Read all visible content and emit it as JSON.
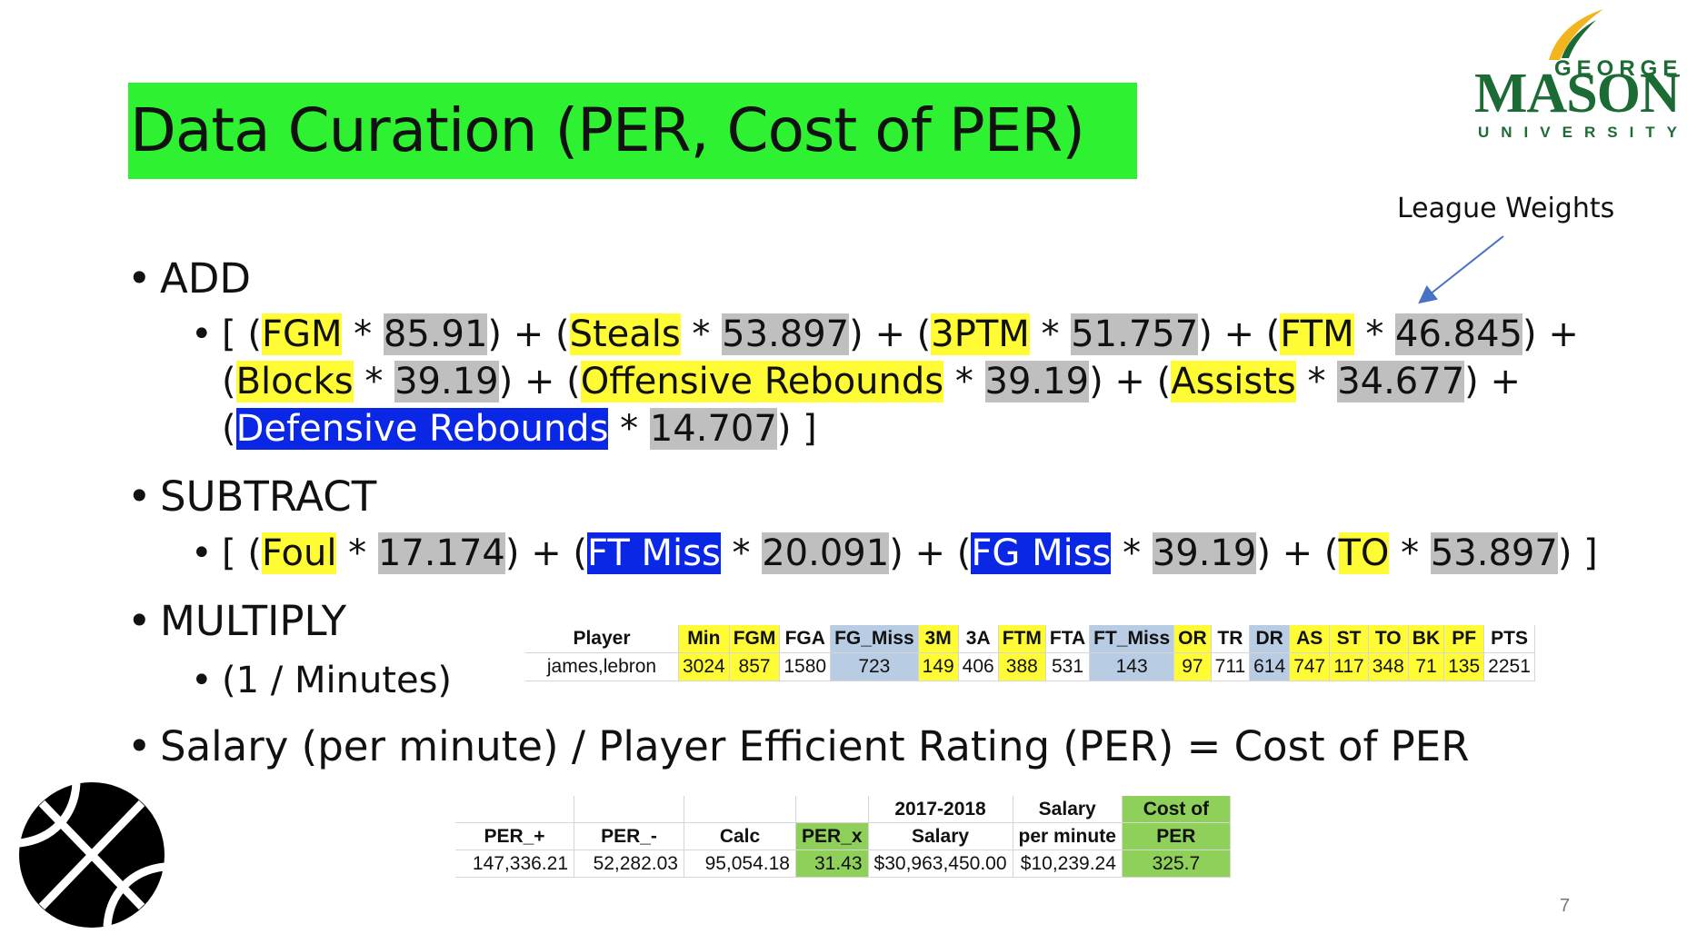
{
  "title": "Data Curation (PER, Cost of PER)",
  "logo": {
    "line1": "GEORGE",
    "line2": "MASON",
    "line3": "UNIVERSITY"
  },
  "annotation": "League Weights",
  "add": {
    "heading": "ADD",
    "parts": {
      "open1": "[ (",
      "t_fgm": "FGM",
      "op1": " * ",
      "w_fgm": "85.91",
      "c1": ") + (",
      "t_steals": "Steals",
      "op2": " * ",
      "w_steals": "53.897",
      "c2": ") + (",
      "t_3ptm": "3PTM",
      "op3": " * ",
      "w_3ptm": "51.757",
      "c3": ") + (",
      "t_ftm": "FTM",
      "op4": " * ",
      "w_ftm": "46.845",
      "c4": ") +",
      "open2": "(",
      "t_blocks": "Blocks",
      "op5": " * ",
      "w_blocks": "39.19",
      "c5": ") + (",
      "t_oreb": "Offensive Rebounds",
      "op6": " * ",
      "w_oreb": "39.19",
      "c6": ") + (",
      "t_assists": "Assists",
      "op7": " * ",
      "w_assists": "34.677",
      "c7": ") +",
      "open3": "(",
      "t_dreb": "Defensive Rebounds",
      "op8": " * ",
      "w_dreb": "14.707",
      "c8": ") ]"
    }
  },
  "subtract": {
    "heading": "SUBTRACT",
    "parts": {
      "open": "[ (",
      "t_foul": "Foul",
      "op1": " * ",
      "w_foul": "17.174",
      "c1": ") + (",
      "t_ftmiss": "FT Miss",
      "op2": " * ",
      "w_ftmiss": "20.091",
      "c2": ") + (",
      "t_fgmiss": "FG Miss",
      "op3": " * ",
      "w_fgmiss": "39.19",
      "c3": ") + (",
      "t_to": "TO",
      "op4": " * ",
      "w_to": "53.897",
      "c4": ") ]"
    }
  },
  "multiply": {
    "heading": "MULTIPLY",
    "sub": "(1 / Minutes)"
  },
  "cost_line": "Salary (per minute) / Player Efficient Rating (PER) = Cost of PER",
  "stats_table": {
    "headers": [
      "Player",
      "Min",
      "FGM",
      "FGA",
      "FG_Miss",
      "3M",
      "3A",
      "FTM",
      "FTA",
      "FT_Miss",
      "OR",
      "TR",
      "DR",
      "AS",
      "ST",
      "TO",
      "BK",
      "PF",
      "PTS"
    ],
    "row": [
      "james,lebron",
      "3024",
      "857",
      "1580",
      "723",
      "149",
      "406",
      "388",
      "531",
      "143",
      "97",
      "711",
      "614",
      "747",
      "117",
      "348",
      "71",
      "135",
      "2251"
    ]
  },
  "cost_table": {
    "header_top": [
      "",
      "",
      "",
      "",
      "2017-2018",
      "Salary",
      "Cost of"
    ],
    "header_bottom": [
      "PER_+",
      "PER_-",
      "Calc",
      "PER_x",
      "Salary",
      "per minute",
      "PER"
    ],
    "row": [
      "147,336.21",
      "52,282.03",
      "95,054.18",
      "31.43",
      "$30,963,450.00",
      "$10,239.24",
      "325.7"
    ]
  },
  "page_number": "7",
  "colors": {
    "title_bg": "#2ef231",
    "term_yellow": "#fffc35",
    "weight_gray": "#bfbfbf",
    "term_blue": "#0a27e6",
    "cell_blue": "#b8cce4",
    "cell_green": "#8fd05a",
    "logo_green": "#1c6b35",
    "logo_gold": "#f2b51d"
  }
}
